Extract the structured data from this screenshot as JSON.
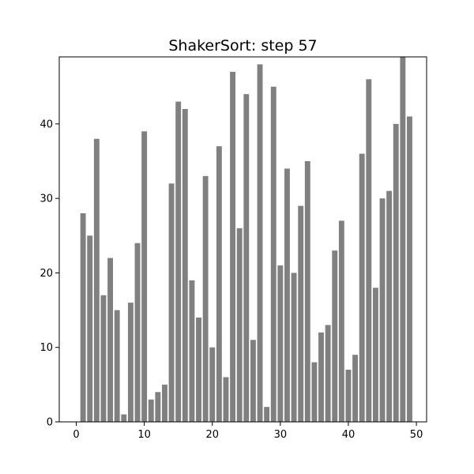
{
  "chart_data": {
    "type": "bar",
    "title": "ShakerSort: step 57",
    "xlabel": "",
    "ylabel": "",
    "x": [
      1,
      2,
      3,
      4,
      5,
      6,
      7,
      8,
      9,
      10,
      11,
      12,
      13,
      14,
      15,
      16,
      17,
      18,
      19,
      20,
      21,
      22,
      23,
      24,
      25,
      26,
      27,
      28,
      29,
      30,
      31,
      32,
      33,
      34,
      35,
      36,
      37,
      38,
      39,
      40,
      41,
      42,
      43,
      44,
      45,
      46,
      47,
      48,
      49
    ],
    "values": [
      28,
      25,
      38,
      17,
      22,
      15,
      1,
      16,
      24,
      39,
      3,
      4,
      5,
      32,
      43,
      42,
      19,
      14,
      33,
      10,
      37,
      6,
      47,
      26,
      44,
      11,
      48,
      2,
      45,
      21,
      34,
      20,
      29,
      35,
      8,
      12,
      13,
      23,
      27,
      7,
      9,
      36,
      46,
      18,
      30,
      31,
      40,
      49,
      41
    ],
    "xlim": [
      -2.5,
      51.5
    ],
    "ylim": [
      0,
      49
    ],
    "xticks": [
      0,
      10,
      20,
      30,
      40,
      50
    ],
    "yticks": [
      0,
      10,
      20,
      30,
      40
    ],
    "grid": false,
    "bar_color": "#808080"
  }
}
